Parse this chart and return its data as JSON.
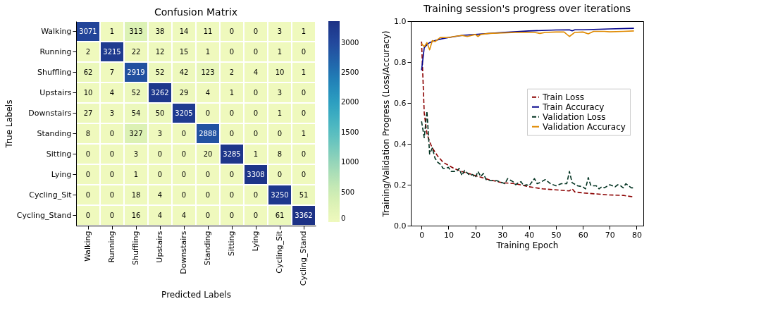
{
  "chart_data": [
    {
      "type": "heatmap",
      "title": "Confusion Matrix",
      "xlabel": "Predicted Labels",
      "ylabel": "True Labels",
      "categories": [
        "Walking",
        "Running",
        "Shuffling",
        "Upstairs",
        "Downstairs",
        "Standing",
        "Sitting",
        "Lying",
        "Cycling_Sit",
        "Cycling_Stand"
      ],
      "y_categories": [
        "Walking",
        "Running",
        "Shuffling",
        "Upstairs",
        "Downstairs",
        "Standing",
        "Sitting",
        "Lying",
        "Cycling_Sit",
        "Cycling_Stand"
      ],
      "cells": [
        [
          3071,
          1,
          313,
          38,
          14,
          11,
          0,
          0,
          3,
          1
        ],
        [
          2,
          3215,
          22,
          12,
          15,
          1,
          0,
          0,
          1,
          0
        ],
        [
          62,
          7,
          2919,
          52,
          42,
          123,
          2,
          4,
          10,
          1
        ],
        [
          10,
          4,
          52,
          3262,
          29,
          4,
          1,
          0,
          3,
          0
        ],
        [
          27,
          3,
          54,
          50,
          3205,
          0,
          0,
          0,
          1,
          0
        ],
        [
          8,
          0,
          327,
          3,
          0,
          2888,
          0,
          0,
          0,
          1
        ],
        [
          0,
          0,
          3,
          0,
          0,
          20,
          3285,
          1,
          8,
          0
        ],
        [
          0,
          0,
          1,
          0,
          0,
          0,
          0,
          3308,
          0,
          0
        ],
        [
          0,
          0,
          18,
          4,
          0,
          0,
          0,
          0,
          3250,
          51
        ],
        [
          0,
          0,
          16,
          4,
          4,
          0,
          0,
          0,
          61,
          3362
        ]
      ],
      "clim": [
        0,
        3362
      ],
      "cticks": [
        0,
        500,
        1000,
        1500,
        2000,
        2500,
        3000
      ],
      "data_labels": true
    },
    {
      "type": "line",
      "title": "Training session's progress over iterations",
      "xlabel": "Training Epoch",
      "ylabel": "Training/Validation Progress (Loss/Accuracy)",
      "xlim": [
        -4,
        82.5
      ],
      "xticks": [
        0,
        10,
        20,
        30,
        40,
        50,
        60,
        70,
        80
      ],
      "ylim": [
        0,
        1
      ],
      "yticks": [
        {
          "value": 0,
          "label": "0.0"
        },
        0.2,
        0.4,
        0.6,
        0.8,
        {
          "value": 1,
          "label": "1.0"
        }
      ],
      "grid": false,
      "legend": "center right",
      "marker": "none",
      "series": [
        {
          "name": "Train Loss",
          "color": "#8b0000",
          "line_style": "dashed",
          "x": [
            0,
            1,
            2,
            3,
            4,
            5,
            6,
            8,
            10,
            12,
            15,
            20,
            25,
            30,
            35,
            40,
            45,
            50,
            55,
            56,
            57,
            60,
            65,
            70,
            75,
            79
          ],
          "values": [
            0.9,
            0.55,
            0.45,
            0.41,
            0.38,
            0.36,
            0.34,
            0.31,
            0.295,
            0.28,
            0.265,
            0.245,
            0.225,
            0.21,
            0.205,
            0.19,
            0.18,
            0.175,
            0.17,
            0.18,
            0.165,
            0.16,
            0.155,
            0.15,
            0.148,
            0.14
          ]
        },
        {
          "name": "Train Accuracy",
          "color": "#00008b",
          "line_style": "solid",
          "x": [
            0,
            1,
            2,
            3,
            5,
            8,
            10,
            15,
            20,
            30,
            40,
            50,
            55,
            56,
            57,
            60,
            70,
            79
          ],
          "values": [
            0.76,
            0.87,
            0.885,
            0.895,
            0.905,
            0.915,
            0.92,
            0.93,
            0.935,
            0.945,
            0.952,
            0.957,
            0.958,
            0.953,
            0.958,
            0.958,
            0.962,
            0.965
          ]
        },
        {
          "name": "Validation Loss",
          "color": "#013220",
          "line_style": "dashed",
          "x": [
            0,
            1,
            2,
            3,
            4,
            5,
            6,
            7,
            8,
            9,
            10,
            11,
            13,
            14,
            15,
            16,
            18,
            19,
            20,
            21,
            22,
            23,
            24,
            26,
            28,
            30,
            31,
            32,
            34,
            35,
            36,
            37,
            38,
            39,
            40,
            42,
            43,
            44,
            46,
            48,
            50,
            52,
            54,
            55,
            56,
            58,
            60,
            61,
            62,
            63,
            65,
            66,
            67,
            68,
            70,
            72,
            73,
            74,
            75,
            76,
            78,
            79
          ],
          "values": [
            0.51,
            0.43,
            0.56,
            0.35,
            0.38,
            0.33,
            0.31,
            0.3,
            0.28,
            0.28,
            0.285,
            0.265,
            0.265,
            0.28,
            0.245,
            0.27,
            0.245,
            0.25,
            0.235,
            0.265,
            0.24,
            0.255,
            0.225,
            0.22,
            0.22,
            0.21,
            0.205,
            0.23,
            0.215,
            0.2,
            0.21,
            0.215,
            0.195,
            0.2,
            0.195,
            0.23,
            0.205,
            0.21,
            0.225,
            0.205,
            0.195,
            0.205,
            0.205,
            0.265,
            0.21,
            0.195,
            0.19,
            0.18,
            0.235,
            0.195,
            0.195,
            0.18,
            0.19,
            0.185,
            0.2,
            0.19,
            0.2,
            0.195,
            0.185,
            0.205,
            0.185,
            0.185
          ]
        },
        {
          "name": "Validation Accuracy",
          "color": "#e08a00",
          "line_style": "solid",
          "x": [
            0,
            1,
            2,
            3,
            4,
            5,
            7,
            10,
            12,
            15,
            17,
            20,
            21,
            22,
            25,
            30,
            35,
            40,
            42,
            44,
            46,
            50,
            53,
            55,
            57,
            60,
            62,
            64,
            68,
            70,
            75,
            79
          ],
          "values": [
            0.89,
            0.875,
            0.895,
            0.86,
            0.905,
            0.9,
            0.92,
            0.92,
            0.925,
            0.93,
            0.925,
            0.935,
            0.925,
            0.935,
            0.94,
            0.942,
            0.945,
            0.945,
            0.945,
            0.94,
            0.945,
            0.947,
            0.947,
            0.925,
            0.945,
            0.947,
            0.938,
            0.95,
            0.95,
            0.948,
            0.95,
            0.952
          ]
        }
      ]
    }
  ]
}
